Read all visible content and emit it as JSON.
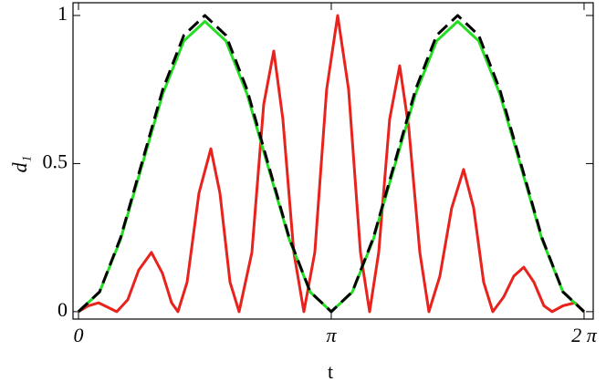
{
  "chart_data": {
    "type": "line",
    "x_label": "t",
    "y_label": "d₁",
    "xlim": [
      -0.068,
      6.397
    ],
    "ylim": [
      -0.025,
      1.043
    ],
    "xticks": [
      {
        "value": 0,
        "label": "0"
      },
      {
        "value": 3.1416,
        "label": "π"
      },
      {
        "value": 6.2832,
        "label": "2 π"
      }
    ],
    "yticks": [
      0,
      0.5,
      1
    ],
    "series": [
      {
        "color": "#e8221c",
        "dash": false,
        "x": [
          0,
          0.125,
          0.249,
          0.363,
          0.476,
          0.612,
          0.748,
          0.907,
          1.043,
          1.157,
          1.236,
          1.35,
          1.497,
          1.645,
          1.758,
          1.883,
          1.996,
          2.155,
          2.302,
          2.427,
          2.54,
          2.676,
          2.801,
          2.937,
          3.084,
          3.221,
          3.357,
          3.504,
          3.618,
          3.731,
          3.867,
          3.992,
          4.105,
          4.242,
          4.355,
          4.491,
          4.638,
          4.786,
          4.911,
          5.035,
          5.149,
          5.285,
          5.41,
          5.534,
          5.659,
          5.784,
          5.886,
          6.022,
          6.17,
          6.283
        ],
        "values": [
          0,
          0.02,
          0.03,
          0.015,
          0,
          0.04,
          0.14,
          0.2,
          0.13,
          0.03,
          0,
          0.1,
          0.4,
          0.55,
          0.4,
          0.1,
          0,
          0.2,
          0.7,
          0.88,
          0.65,
          0.2,
          0,
          0.2,
          0.75,
          1.0,
          0.75,
          0.2,
          0,
          0.2,
          0.65,
          0.83,
          0.62,
          0.2,
          0,
          0.12,
          0.35,
          0.48,
          0.35,
          0.1,
          0,
          0.05,
          0.12,
          0.15,
          0.1,
          0.02,
          0,
          0.02,
          0.03,
          0
        ]
      },
      {
        "color": "#22dd22",
        "dash": false,
        "x": [
          0,
          0.2618,
          0.5236,
          0.7854,
          1.0472,
          1.309,
          1.5708,
          1.8326,
          2.0944,
          2.3562,
          2.618,
          2.8798,
          3.1416,
          3.4034,
          3.6652,
          3.927,
          4.1888,
          4.4506,
          4.7124,
          4.9742,
          5.236,
          5.4978,
          5.7596,
          6.0214,
          6.2832
        ],
        "values": [
          0,
          0.066,
          0.245,
          0.49,
          0.735,
          0.914,
          0.98,
          0.914,
          0.735,
          0.49,
          0.245,
          0.066,
          0,
          0.066,
          0.245,
          0.49,
          0.735,
          0.914,
          0.98,
          0.914,
          0.735,
          0.49,
          0.245,
          0.066,
          0
        ]
      },
      {
        "color": "#000000",
        "dash": true,
        "x": [
          0,
          0.2618,
          0.5236,
          0.7854,
          1.0472,
          1.309,
          1.5708,
          1.8326,
          2.0944,
          2.3562,
          2.618,
          2.8798,
          3.1416,
          3.4034,
          3.6652,
          3.927,
          4.1888,
          4.4506,
          4.7124,
          4.9742,
          5.236,
          5.4978,
          5.7596,
          6.0214,
          6.2832
        ],
        "values": [
          0,
          0.067,
          0.25,
          0.5,
          0.75,
          0.933,
          1,
          0.933,
          0.75,
          0.5,
          0.25,
          0.067,
          0,
          0.067,
          0.25,
          0.5,
          0.75,
          0.933,
          1,
          0.933,
          0.75,
          0.5,
          0.25,
          0.067,
          0
        ]
      }
    ]
  }
}
